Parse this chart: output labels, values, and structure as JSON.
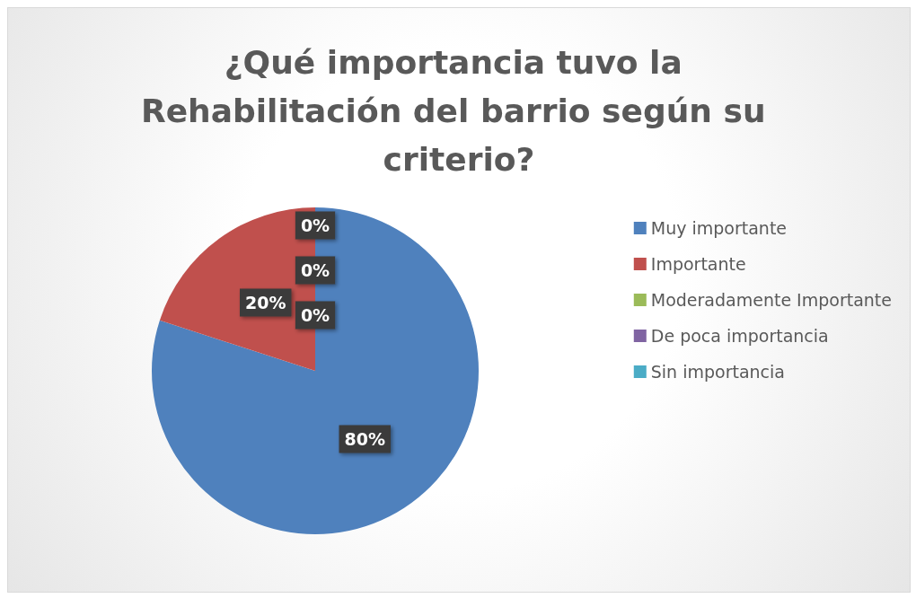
{
  "chart_data": {
    "type": "pie",
    "title": "¿Qué importancia tuvo la Rehabilitación del barrio según su criterio?",
    "categories": [
      "Muy importante",
      "Importante",
      "Moderadamente Importante",
      "De poca importancia",
      "Sin importancia"
    ],
    "values": [
      80,
      20,
      0,
      0,
      0
    ],
    "colors": [
      "#4f81bd",
      "#c0504d",
      "#9bbb59",
      "#8064a2",
      "#4bacc6"
    ],
    "value_labels": [
      "80%",
      "20%",
      "0%",
      "0%",
      "0%"
    ],
    "legend": "right"
  }
}
